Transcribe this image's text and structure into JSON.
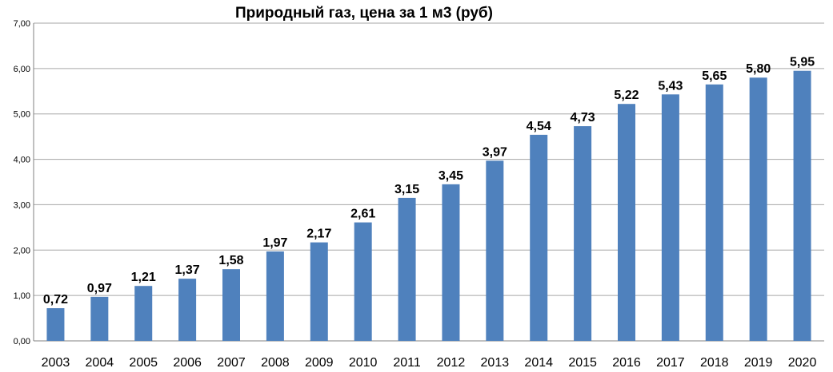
{
  "chart_data": {
    "type": "bar",
    "title": "Природный газ, цена за 1 м3  (руб)",
    "xlabel": "",
    "ylabel": "",
    "categories": [
      "2003",
      "2004",
      "2005",
      "2006",
      "2007",
      "2008",
      "2009",
      "2010",
      "2011",
      "2012",
      "2013",
      "2014",
      "2015",
      "2016",
      "2017",
      "2018",
      "2019",
      "2020"
    ],
    "values": [
      0.72,
      0.97,
      1.21,
      1.37,
      1.58,
      1.97,
      2.17,
      2.61,
      3.15,
      3.45,
      3.97,
      4.54,
      4.73,
      5.22,
      5.43,
      5.65,
      5.8,
      5.95
    ],
    "data_labels": [
      "0,72",
      "0,97",
      "1,21",
      "1,37",
      "1,58",
      "1,97",
      "2,17",
      "2,61",
      "3,15",
      "3,45",
      "3,97",
      "4,54",
      "4,73",
      "5,22",
      "5,43",
      "5,65",
      "5,80",
      "5,95"
    ],
    "ylim": [
      0,
      7
    ],
    "y_ticks": [
      "0,00",
      "1,00",
      "2,00",
      "3,00",
      "4,00",
      "5,00",
      "6,00",
      "7,00"
    ],
    "grid": true,
    "legend": "none",
    "bar_color": "#4F81BD",
    "grid_color": "#A6A6A6"
  }
}
